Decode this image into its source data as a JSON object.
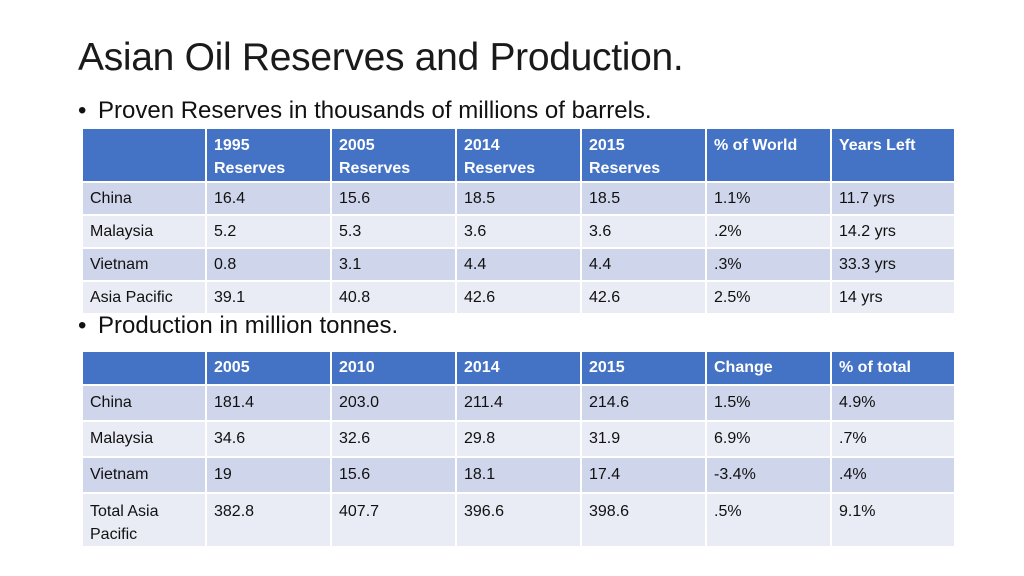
{
  "slide": {
    "title": "Asian Oil Reserves and Production.",
    "bullet_glyph": "•",
    "bullet1": "Proven Reserves in thousands of millions of barrels.",
    "bullet2": "Production in million tonnes."
  },
  "reserves": {
    "headers": [
      [
        "",
        ""
      ],
      [
        "1995",
        "Reserves"
      ],
      [
        "2005",
        "Reserves"
      ],
      [
        "2014",
        "Reserves"
      ],
      [
        "2015",
        "Reserves"
      ],
      [
        "% of World",
        ""
      ],
      [
        "Years Left",
        ""
      ]
    ],
    "rows": [
      [
        "China",
        "16.4",
        "15.6",
        "18.5",
        "18.5",
        "1.1%",
        "11.7 yrs"
      ],
      [
        "Malaysia",
        "5.2",
        "5.3",
        "3.6",
        "3.6",
        ".2%",
        "14.2 yrs"
      ],
      [
        "Vietnam",
        "0.8",
        "3.1",
        "4.4",
        "4.4",
        ".3%",
        "33.3 yrs"
      ],
      [
        "Asia Pacific",
        "39.1",
        "40.8",
        "42.6",
        "42.6",
        "2.5%",
        "14 yrs"
      ]
    ]
  },
  "production": {
    "headers": [
      "",
      "2005",
      "2010",
      "2014",
      "2015",
      "Change",
      "% of total"
    ],
    "rows": [
      [
        [
          "China",
          ""
        ],
        "181.4",
        "203.0",
        "211.4",
        "214.6",
        "1.5%",
        "4.9%"
      ],
      [
        [
          "Malaysia",
          ""
        ],
        "34.6",
        "32.6",
        "29.8",
        "31.9",
        "6.9%",
        ".7%"
      ],
      [
        [
          "Vietnam",
          ""
        ],
        "19",
        "15.6",
        "18.1",
        "17.4",
        "-3.4%",
        ".4%"
      ],
      [
        [
          "Total Asia",
          "Pacific"
        ],
        "382.8",
        "407.7",
        "396.6",
        "398.6",
        ".5%",
        "9.1%"
      ]
    ]
  }
}
